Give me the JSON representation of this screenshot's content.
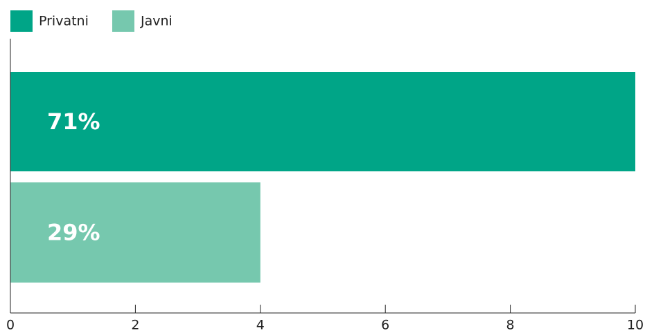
{
  "chart_data": {
    "type": "bar",
    "orientation": "horizontal",
    "series": [
      {
        "name": "Privatni",
        "color": "#00a587",
        "values": [
          10
        ]
      },
      {
        "name": "Javni",
        "color": "#76c8ae",
        "values": [
          4
        ]
      }
    ],
    "annotations": [
      "71%",
      "29%"
    ],
    "xlim": [
      0,
      10
    ],
    "xticks": [
      0,
      2,
      4,
      6,
      8,
      10
    ]
  }
}
